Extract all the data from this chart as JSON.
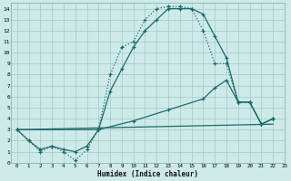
{
  "xlabel": "Humidex (Indice chaleur)",
  "bg_color": "#cdeae8",
  "grid_color": "#a8cece",
  "line_color": "#1a6b6b",
  "line1_x": [
    0,
    1,
    2,
    3,
    4,
    5,
    6,
    7,
    8,
    9,
    10,
    11,
    12,
    13,
    14,
    15,
    16,
    17,
    18,
    19,
    20,
    21,
    22
  ],
  "line1_y": [
    3.0,
    2.0,
    1.0,
    1.5,
    1.0,
    0.2,
    1.2,
    3.0,
    8.0,
    10.5,
    11.0,
    13.0,
    14.0,
    14.2,
    14.2,
    14.0,
    12.0,
    9.0,
    9.0,
    5.5,
    5.5,
    3.5,
    4.0
  ],
  "line2_x": [
    0,
    1,
    2,
    3,
    4,
    5,
    6,
    7,
    8,
    9,
    10,
    11,
    12,
    13,
    14,
    15,
    16,
    17,
    18,
    19,
    20,
    21,
    22
  ],
  "line2_y": [
    3.0,
    2.0,
    1.2,
    1.5,
    1.2,
    1.0,
    1.5,
    3.0,
    6.5,
    8.5,
    10.5,
    12.0,
    13.0,
    14.0,
    14.0,
    14.0,
    13.5,
    11.5,
    9.5,
    5.5,
    5.5,
    3.5,
    4.0
  ],
  "line3_x": [
    0,
    7,
    10,
    13,
    16,
    17,
    18,
    19,
    20,
    21,
    22
  ],
  "line3_y": [
    3.0,
    3.0,
    3.8,
    4.8,
    5.8,
    6.8,
    7.5,
    5.5,
    5.5,
    3.5,
    4.0
  ],
  "line4_x": [
    0,
    22
  ],
  "line4_y": [
    3.0,
    3.5
  ],
  "xlim": [
    -0.5,
    23
  ],
  "ylim": [
    0,
    14.5
  ],
  "xticks": [
    0,
    1,
    2,
    3,
    4,
    5,
    6,
    7,
    8,
    9,
    10,
    11,
    12,
    13,
    14,
    15,
    16,
    17,
    18,
    19,
    20,
    21,
    22,
    23
  ],
  "yticks": [
    0,
    1,
    2,
    3,
    4,
    5,
    6,
    7,
    8,
    9,
    10,
    11,
    12,
    13,
    14
  ]
}
